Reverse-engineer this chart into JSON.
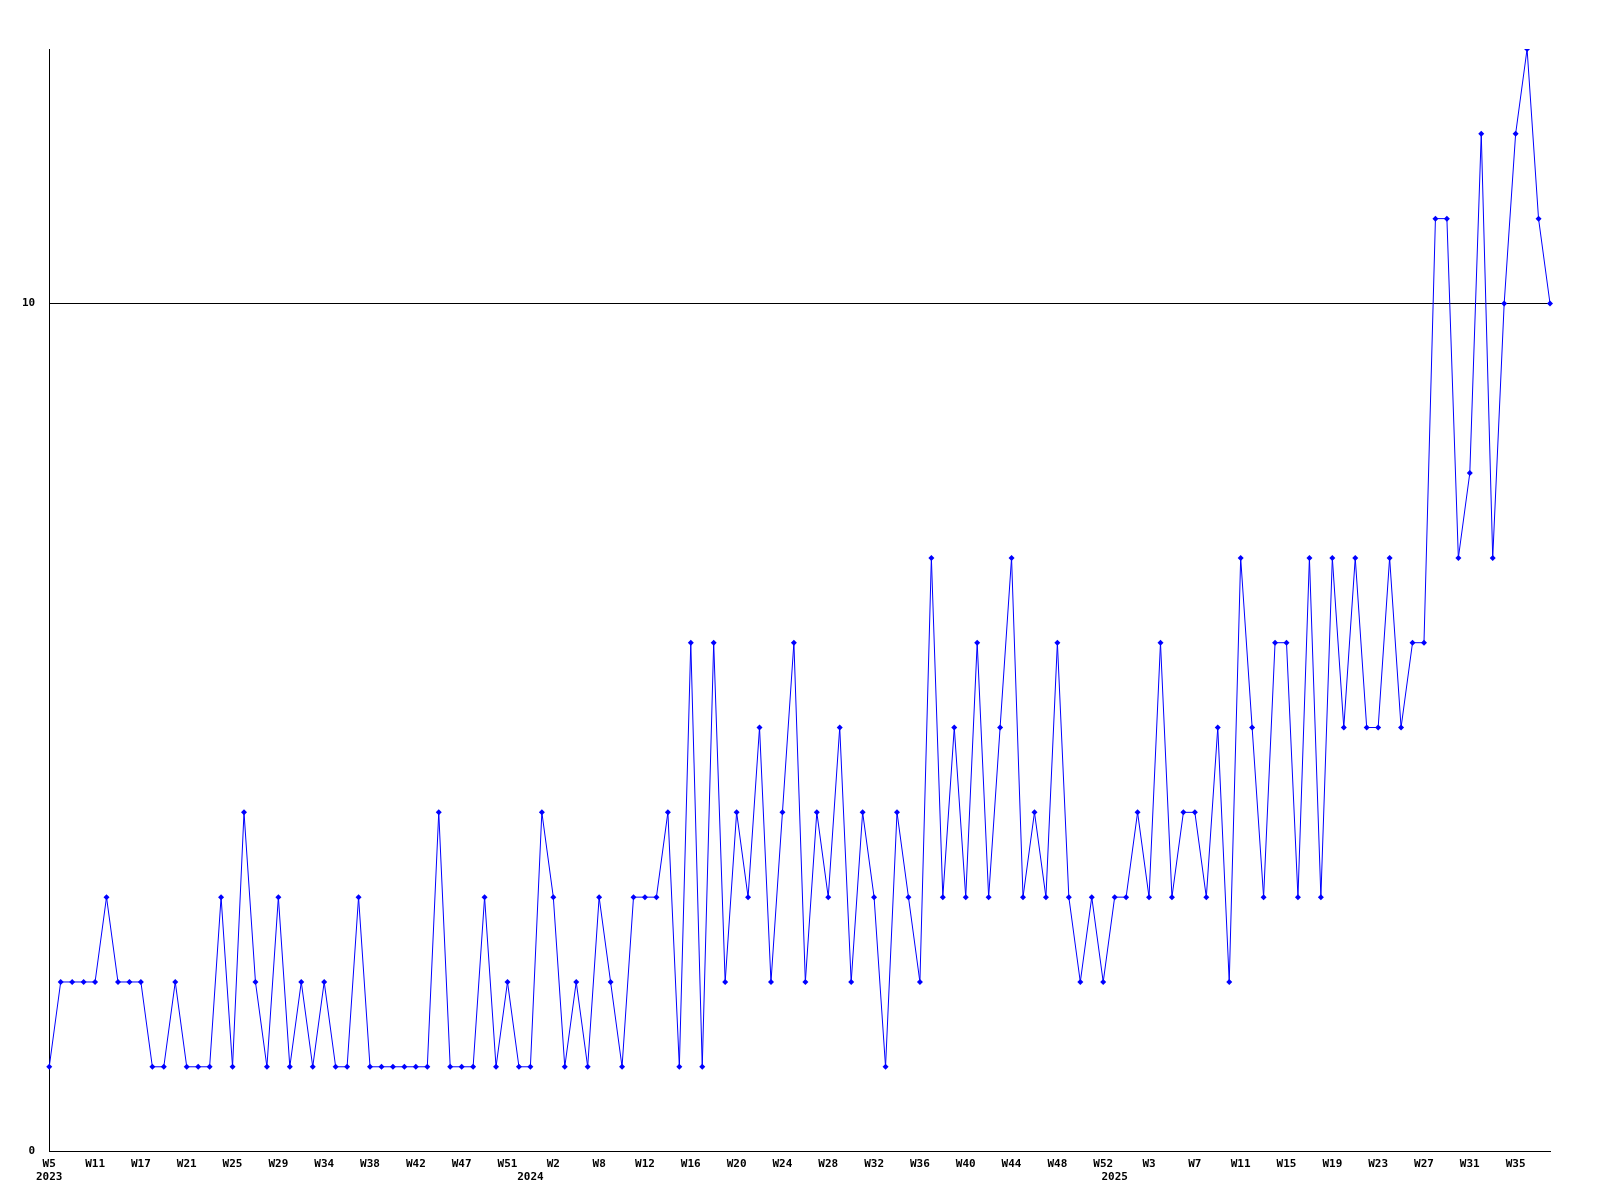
{
  "chart_data": {
    "type": "line",
    "categories": [
      "W5\n2023",
      null,
      null,
      null,
      "W11",
      null,
      null,
      null,
      "W17",
      null,
      null,
      null,
      "W21",
      null,
      null,
      null,
      "W25",
      null,
      null,
      null,
      "W29",
      null,
      null,
      null,
      "W34",
      null,
      null,
      null,
      "W38",
      null,
      null,
      null,
      "W42",
      null,
      null,
      null,
      "W47",
      null,
      null,
      null,
      "W51",
      null,
      "\n2024",
      null,
      "W2",
      null,
      null,
      null,
      "W8",
      null,
      null,
      null,
      "W12",
      null,
      null,
      null,
      "W16",
      null,
      null,
      null,
      "W20",
      null,
      null,
      null,
      "W24",
      null,
      null,
      null,
      "W28",
      null,
      null,
      null,
      "W32",
      null,
      null,
      null,
      "W36",
      null,
      null,
      null,
      "W40",
      null,
      null,
      null,
      "W44",
      null,
      null,
      null,
      "W48",
      null,
      null,
      null,
      "W52",
      "\n2025",
      null,
      null,
      "W3",
      null,
      null,
      null,
      "W7",
      null,
      null,
      null,
      "W11",
      null,
      null,
      null,
      "W15",
      null,
      null,
      null,
      "W19",
      null,
      null,
      null,
      "W23",
      null,
      null,
      null,
      "W27",
      null,
      null,
      null,
      "W31",
      null,
      null,
      null,
      "W35",
      null,
      null,
      null
    ],
    "series": [
      {
        "color": "#0000ff",
        "values": [
          1,
          2,
          2,
          2,
          2,
          3,
          2,
          2,
          2,
          1,
          1,
          2,
          1,
          1,
          1,
          3,
          1,
          4,
          2,
          1,
          3,
          1,
          2,
          1,
          2,
          1,
          1,
          3,
          1,
          1,
          1,
          1,
          1,
          1,
          4,
          1,
          1,
          1,
          3,
          1,
          2,
          1,
          1,
          4,
          3,
          1,
          2,
          1,
          3,
          2,
          1,
          3,
          3,
          3,
          4,
          1,
          6,
          1,
          6,
          2,
          4,
          3,
          5,
          2,
          4,
          6,
          2,
          4,
          3,
          5,
          2,
          4,
          3,
          1,
          4,
          3,
          2,
          7,
          3,
          5,
          3,
          6,
          3,
          5,
          7,
          3,
          4,
          3,
          6,
          3,
          2,
          3,
          2,
          3,
          3,
          4,
          3,
          6,
          3,
          4,
          4,
          3,
          5,
          2,
          7,
          5,
          3,
          6,
          6,
          3,
          7,
          3,
          7,
          5,
          7,
          5,
          5,
          7,
          5,
          6,
          6,
          11,
          11,
          7,
          8,
          12,
          7,
          10,
          12,
          13,
          11,
          10
        ]
      }
    ],
    "ylim": [
      0,
      13
    ],
    "yticks": [
      0,
      10
    ],
    "grid": "y",
    "legend": false,
    "marker": "diamond",
    "line_style": "solid"
  }
}
